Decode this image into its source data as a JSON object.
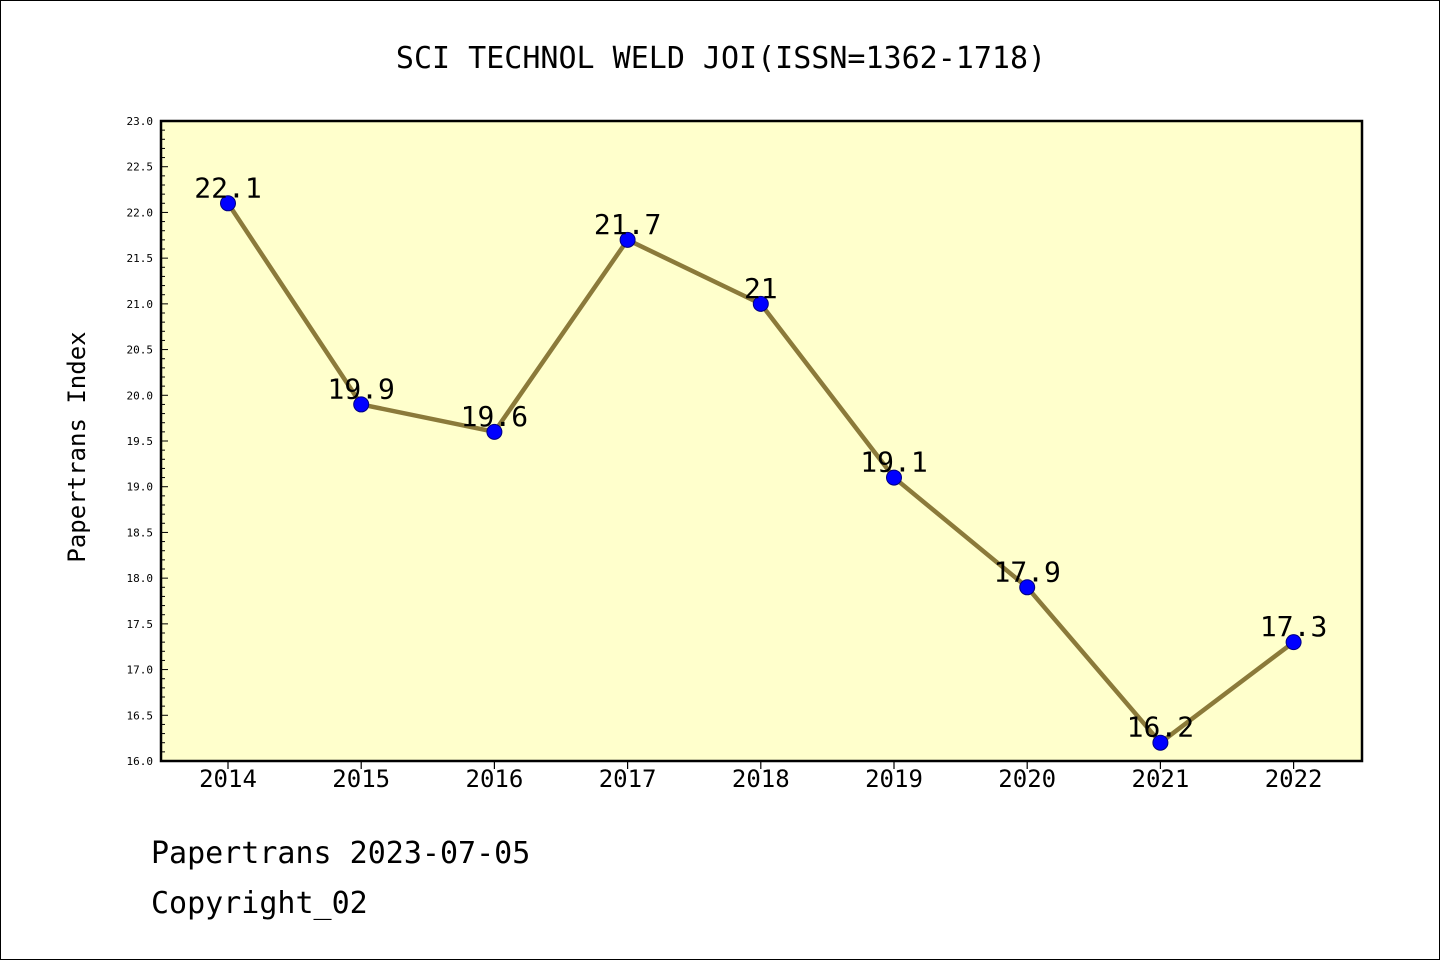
{
  "chart_data": {
    "type": "line",
    "title": "SCI TECHNOL WELD JOI(ISSN=1362-1718)",
    "xlabel": "",
    "ylabel": "Papertrans Index",
    "categories": [
      "2014",
      "2015",
      "2016",
      "2017",
      "2018",
      "2019",
      "2020",
      "2021",
      "2022"
    ],
    "series": [
      {
        "values": [
          22.1,
          19.9,
          19.6,
          21.7,
          21.0,
          19.1,
          17.9,
          16.2,
          17.3
        ],
        "data_labels": [
          "22.1",
          "19.9",
          "19.6",
          "21.7",
          "21",
          "19.1",
          "17.9",
          "16.2",
          "17.3"
        ]
      }
    ],
    "ylim": [
      16.0,
      23.0
    ],
    "yticks": [
      "16.0",
      "16.5",
      "17.0",
      "17.5",
      "18.0",
      "18.5",
      "19.0",
      "19.5",
      "20.0",
      "20.5",
      "21.0",
      "21.5",
      "22.0",
      "22.5",
      "23.0"
    ],
    "grid": false,
    "legend": "none",
    "colors": {
      "plot_background": "#ffffcc",
      "line": "#8b7a3a",
      "marker": "#0000ff",
      "marker_edge": "#000080"
    }
  },
  "footer": {
    "line1": "Papertrans 2023-07-05",
    "line2": "Copyright_02"
  }
}
